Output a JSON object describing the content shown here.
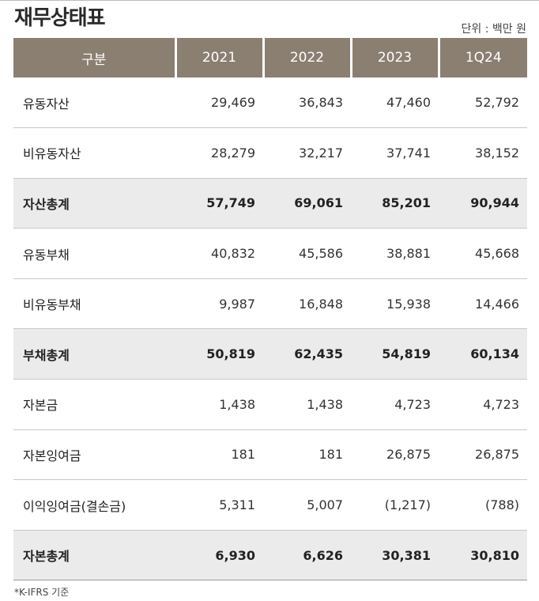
{
  "title": "재무상태표",
  "unit": "단위 : 백만 원",
  "header": [
    "구분",
    "2021",
    "2022",
    "2023",
    "1Q24"
  ],
  "rows": [
    {
      "label": "유동자산",
      "values": [
        "29,469",
        "36,843",
        "47,460",
        "52,792"
      ],
      "total": false
    },
    {
      "label": "비유동자산",
      "values": [
        "28,279",
        "32,217",
        "37,741",
        "38,152"
      ],
      "total": false
    },
    {
      "label": "자산총계",
      "values": [
        "57,749",
        "69,061",
        "85,201",
        "90,944"
      ],
      "total": true
    },
    {
      "label": "유동부채",
      "values": [
        "40,832",
        "45,586",
        "38,881",
        "45,668"
      ],
      "total": false
    },
    {
      "label": "비유동부채",
      "values": [
        "9,987",
        "16,848",
        "15,938",
        "14,466"
      ],
      "total": false
    },
    {
      "label": "부채총계",
      "values": [
        "50,819",
        "62,435",
        "54,819",
        "60,134"
      ],
      "total": true
    },
    {
      "label": "자본금",
      "values": [
        "1,438",
        "1,438",
        "4,723",
        "4,723"
      ],
      "total": false
    },
    {
      "label": "자본잉여금",
      "values": [
        "181",
        "181",
        "26,875",
        "26,875"
      ],
      "total": false
    },
    {
      "label": "이익잉여금(결손금)",
      "values": [
        "5,311",
        "5,007",
        "(1,217)",
        "(788)"
      ],
      "total": false
    },
    {
      "label": "자본총계",
      "values": [
        "6,930",
        "6,626",
        "30,381",
        "30,810"
      ],
      "total": true
    }
  ],
  "footnote": "*K-IFRS 기준",
  "colors": {
    "header_bg": "#8b7f72",
    "total_row_bg": "#ebebeb"
  }
}
